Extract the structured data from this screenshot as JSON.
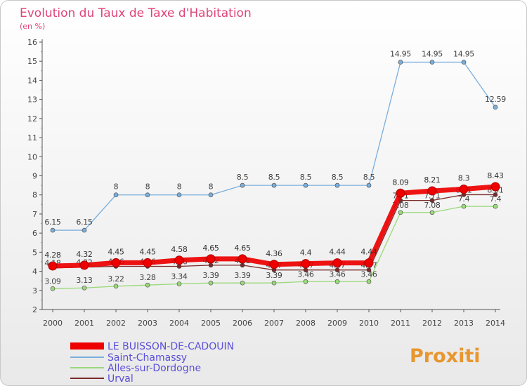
{
  "title": "Evolution du Taux de Taxe d'Habitation",
  "subtitle": "(en %)",
  "logo_text": "Proxiti",
  "chart_data": {
    "type": "line",
    "title": "Evolution du Taux de Taxe d'Habitation",
    "ylabel": "(en %)",
    "xlabel": "",
    "ylim": [
      2,
      16
    ],
    "yticks": [
      "2",
      "3",
      "4",
      "5",
      "6",
      "7",
      "8",
      "9",
      "10",
      "11",
      "12",
      "13",
      "14",
      "15",
      "16"
    ],
    "categories": [
      "2000",
      "2001",
      "2002",
      "2003",
      "2004",
      "2005",
      "2006",
      "2007",
      "2008",
      "2009",
      "2010",
      "2011",
      "2012",
      "2013",
      "2014"
    ],
    "grid": false,
    "legend_position": "bottom-left",
    "series": [
      {
        "name": "LE BUISSON-DE-CADOUIN",
        "color": "#ee0000",
        "values": [
          4.28,
          4.32,
          4.45,
          4.45,
          4.58,
          4.65,
          4.65,
          4.36,
          4.4,
          4.44,
          4.44,
          8.09,
          8.21,
          8.3,
          8.43
        ],
        "labels": [
          "4.28",
          "4.32",
          "4.45",
          "4.45",
          "4.58",
          "4.65",
          "4.65",
          "4.36",
          "4.4",
          "4.44",
          "4.44",
          "8.09",
          "8.21",
          "8.3",
          "8.43"
        ]
      },
      {
        "name": "Saint-Chamassy",
        "color": "#7aaedc",
        "values": [
          6.15,
          6.15,
          8,
          8,
          8,
          8,
          8.5,
          8.5,
          8.5,
          8.5,
          8.5,
          14.95,
          14.95,
          14.95,
          12.59
        ],
        "labels": [
          "6.15",
          "6.15",
          "8",
          "8",
          "8",
          "8",
          "8.5",
          "8.5",
          "8.5",
          "8.5",
          "8.5",
          "14.95",
          "14.95",
          "14.95",
          "12.59"
        ]
      },
      {
        "name": "Alles-sur-Dordogne",
        "color": "#9ad97a",
        "values": [
          3.09,
          3.13,
          3.22,
          3.28,
          3.34,
          3.39,
          3.39,
          3.39,
          3.46,
          3.46,
          3.46,
          7.08,
          7.08,
          7.4,
          7.4
        ],
        "labels": [
          "3.09",
          "3.13",
          "3.22",
          "3.28",
          "3.34",
          "3.39",
          "3.39",
          "3.39",
          "3.46",
          "3.46",
          "3.46",
          "7.08",
          "7.08",
          "7.4",
          "7.4"
        ]
      },
      {
        "name": "Urval",
        "color": "#7a2a2a",
        "values": [
          4.18,
          4.22,
          4.26,
          4.26,
          4.26,
          4.32,
          4.32,
          4.07,
          4.07,
          4.07,
          4.07,
          7.71,
          7.71,
          8.01,
          8.01
        ],
        "labels": [
          "4.18",
          "4.22",
          "4.26",
          "4.26",
          "4.26",
          "4.32",
          "4.32",
          "4.07",
          "4.07",
          "4.07",
          "4.07",
          "7.71",
          "7.71",
          "8.01",
          "8.01"
        ]
      }
    ]
  },
  "colors": {
    "title": "#e0447a",
    "axis_text": "#444444",
    "axis_line": "#555555",
    "legend_text": "#5a4fd8"
  }
}
